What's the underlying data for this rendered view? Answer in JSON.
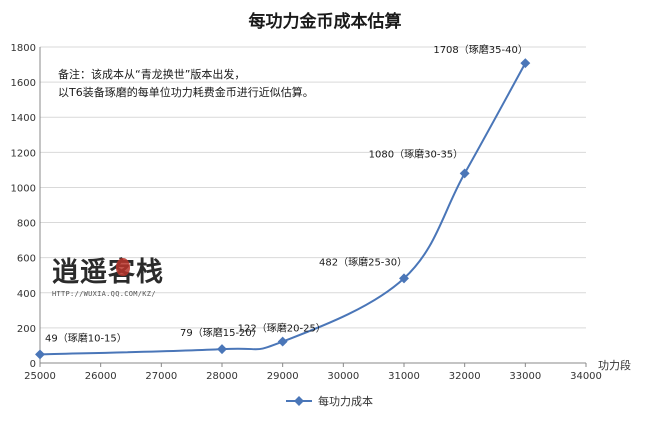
{
  "chart_data": {
    "type": "line",
    "title": "每功力金币成本估算",
    "xlabel": "功力段",
    "ylabel": "",
    "xlim": [
      25000,
      34000
    ],
    "ylim": [
      0,
      1800
    ],
    "x_ticks": [
      25000,
      26000,
      27000,
      28000,
      29000,
      30000,
      31000,
      32000,
      33000,
      34000
    ],
    "y_ticks": [
      0,
      200,
      400,
      600,
      800,
      1000,
      1200,
      1400,
      1600,
      1800
    ],
    "grid": "horizontal",
    "legend_position": "bottom",
    "series": [
      {
        "name": "每功力成本",
        "color": "#4a76b8",
        "x": [
          25000,
          28000,
          29000,
          31000,
          32000,
          33000
        ],
        "y": [
          49,
          79,
          122,
          482,
          1080,
          1708
        ]
      }
    ],
    "data_labels": [
      "49（琢磨10-15）",
      "79（琢磨15-20）",
      "122（琢磨20-25）",
      "482（琢磨25-30）",
      "1080（琢磨30-35）",
      "1708（琢磨35-40）"
    ],
    "annotation": [
      "备注：该成本从“青龙换世”版本出发，",
      "以T6装备琢磨的每单位功力耗费金币进行近似估算。"
    ]
  },
  "watermark": {
    "logo_text": "逍遥客栈",
    "url_text": "HTTP://WUXIA.QQ.COM/KZ/"
  }
}
